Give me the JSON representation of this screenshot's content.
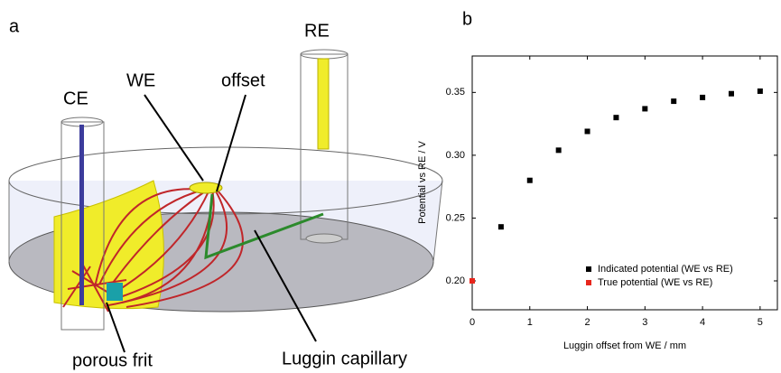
{
  "panel_labels": [
    "a",
    "b"
  ],
  "diagram": {
    "labels": {
      "re": "RE",
      "ce": "CE",
      "we": "WE",
      "offset": "offset",
      "frit": "porous frit",
      "luggin": "Luggin capillary"
    }
  },
  "chart_data": {
    "type": "scatter",
    "x_label": "Luggin offset from WE / mm",
    "y_label": "Potential vs RE / V",
    "xlim": [
      0,
      5.3
    ],
    "xticks": [
      0,
      1,
      2,
      3,
      4,
      5
    ],
    "ylim": [
      0.177,
      0.379
    ],
    "yticks": [
      {
        "value": 0.2,
        "label": "0.20"
      },
      0.25,
      {
        "value": 0.3,
        "label": "0.30"
      },
      0.35
    ],
    "legend": "lower right",
    "series": [
      {
        "name": "Indicated potential (WE vs RE)",
        "color": "#000000",
        "x": [
          0.5,
          1,
          1.5,
          2,
          2.5,
          3,
          3.5,
          4,
          4.5,
          5
        ],
        "values": [
          0.243,
          0.28,
          0.304,
          0.319,
          0.33,
          0.337,
          0.343,
          0.346,
          0.349,
          0.351
        ]
      },
      {
        "name": "True potential (WE vs RE)",
        "color": "#e8261c",
        "x": [
          0
        ],
        "values": [
          0.2
        ]
      }
    ]
  }
}
